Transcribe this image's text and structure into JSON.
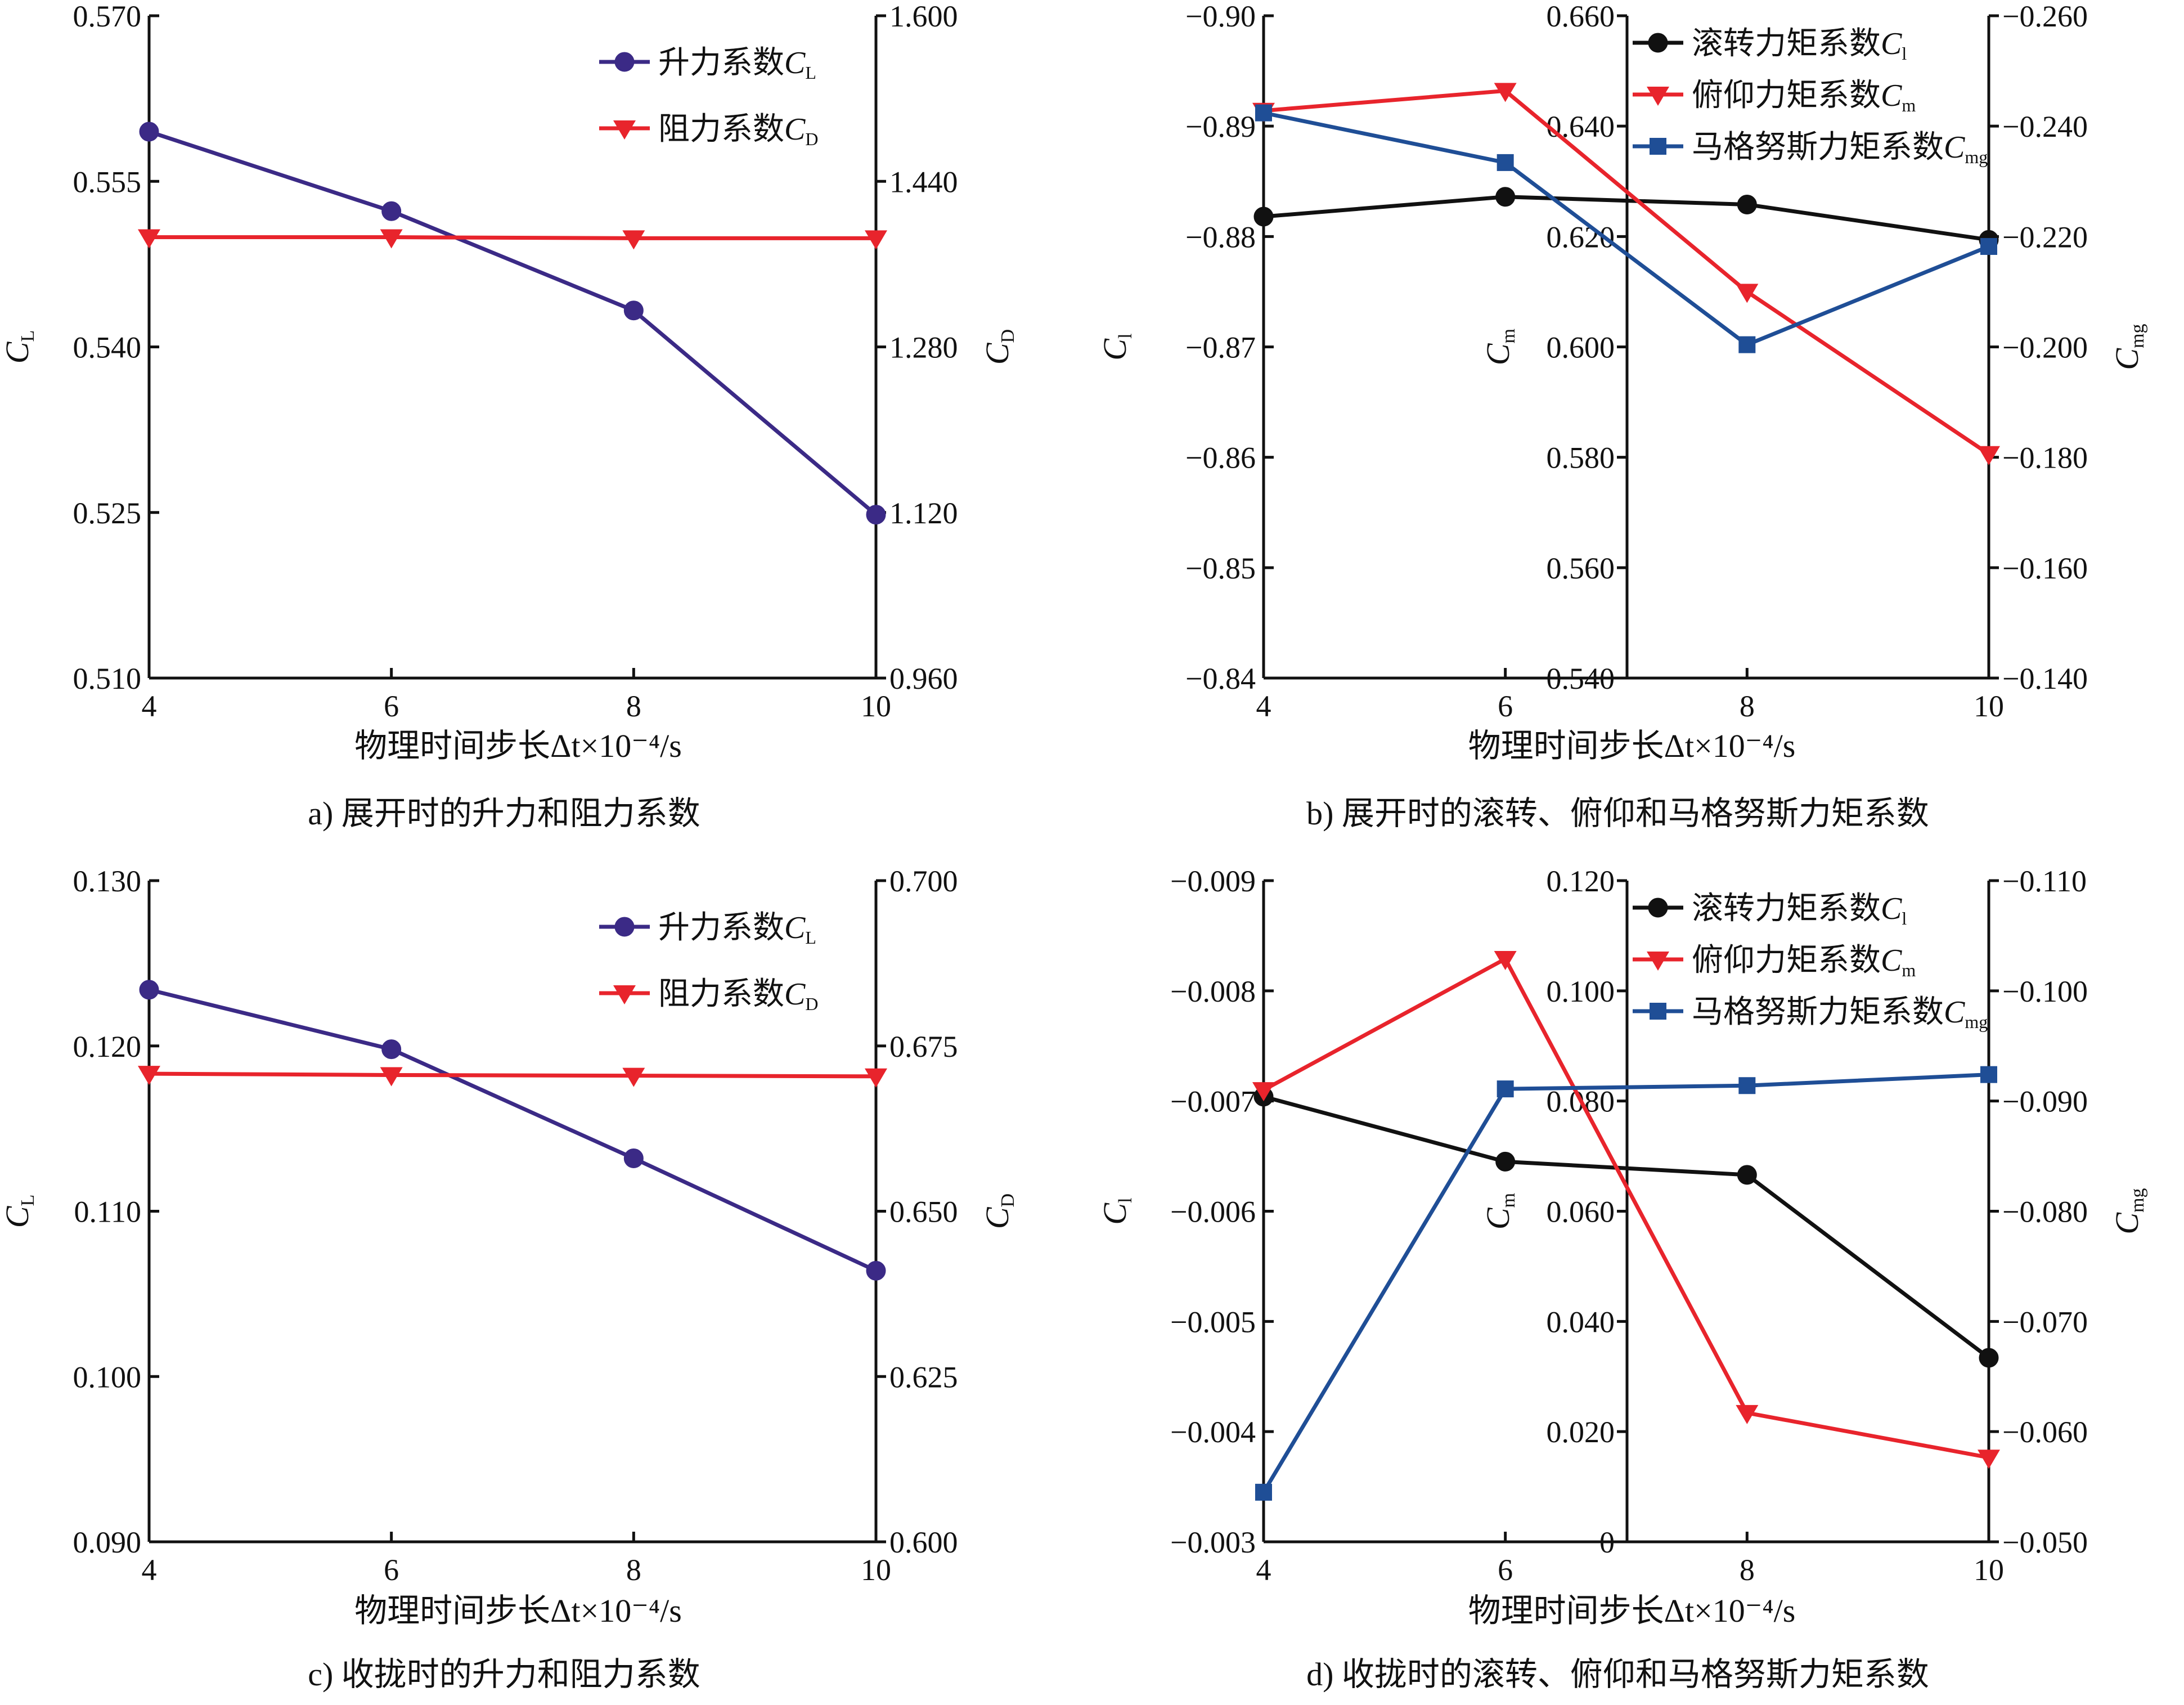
{
  "colors": {
    "purple": "#3b2a86",
    "red": "#e8242c",
    "black": "#111111",
    "blue": "#1f4e96"
  },
  "chart_data": [
    {
      "panel": "a",
      "type": "line",
      "caption": "a) 展开时的升力和阻力系数",
      "xlabel": "物理时间步长Δt×10⁻⁴/s",
      "x": [
        4,
        6,
        8,
        10
      ],
      "x_ticks": [
        "4",
        "6",
        "8",
        "10"
      ],
      "xlim": [
        4,
        10
      ],
      "axes": [
        {
          "side": "left",
          "label": "C_L",
          "label_main": "C",
          "label_sub": "L",
          "ylim": [
            0.51,
            0.57
          ],
          "ticks": [
            "0.510",
            "0.525",
            "0.540",
            "0.555",
            "0.570"
          ]
        },
        {
          "side": "right",
          "label": "C_D",
          "label_main": "C",
          "label_sub": "D",
          "ylim": [
            0.96,
            1.6
          ],
          "ticks": [
            "0.960",
            "1.120",
            "1.280",
            "1.440",
            "1.600"
          ]
        }
      ],
      "series": [
        {
          "name": "升力系数C_L",
          "legend_text": "升力系数",
          "legend_main": "C",
          "legend_sub": "L",
          "axis": 0,
          "color": "#3b2a86",
          "marker": "circle",
          "values": [
            0.5595,
            0.5523,
            0.5433,
            0.5248
          ]
        },
        {
          "name": "阻力系数C_D",
          "legend_text": "阻力系数",
          "legend_main": "C",
          "legend_sub": "D",
          "axis": 1,
          "color": "#e8242c",
          "marker": "triangle-down",
          "values": [
            1.386,
            1.386,
            1.385,
            1.385
          ]
        }
      ]
    },
    {
      "panel": "b",
      "type": "line",
      "caption": "b) 展开时的滚转、俯仰和马格努斯力矩系数",
      "xlabel": "物理时间步长Δt×10⁻⁴/s",
      "x": [
        4,
        6,
        8,
        10
      ],
      "x_ticks": [
        "4",
        "6",
        "8",
        "10"
      ],
      "xlim": [
        4,
        10
      ],
      "axes": [
        {
          "side": "left",
          "label": "C_l",
          "label_main": "C",
          "label_sub": "l",
          "ylim": [
            -0.84,
            -0.9
          ],
          "ticks": [
            "−0.84",
            "−0.85",
            "−0.86",
            "−0.87",
            "−0.88",
            "−0.89",
            "−0.90"
          ]
        },
        {
          "side": "middle",
          "label": "C_m",
          "label_main": "C",
          "label_sub": "m",
          "ylim": [
            0.54,
            0.66
          ],
          "ticks": [
            "0.540",
            "0.560",
            "0.580",
            "0.600",
            "0.620",
            "0.640",
            "0.660"
          ]
        },
        {
          "side": "right",
          "label": "C_mg",
          "label_main": "C",
          "label_sub": "mg",
          "ylim": [
            -0.14,
            -0.26
          ],
          "ticks": [
            "−0.140",
            "−0.160",
            "−0.180",
            "−0.200",
            "−0.220",
            "−0.240",
            "−0.260"
          ]
        }
      ],
      "series": [
        {
          "name": "滚转力矩系数C_l",
          "legend_text": "滚转力矩系数",
          "legend_main": "C",
          "legend_sub": "l",
          "axis": 0,
          "color": "#111111",
          "marker": "circle",
          "values": [
            -0.8818,
            -0.8836,
            -0.8829,
            -0.8797
          ]
        },
        {
          "name": "俯仰力矩系数C_m",
          "legend_text": "俯仰力矩系数",
          "legend_main": "C",
          "legend_sub": "m",
          "axis": 1,
          "color": "#e8242c",
          "marker": "triangle-down",
          "values": [
            0.6428,
            0.6464,
            0.61,
            0.5806
          ]
        },
        {
          "name": "马格努斯力矩系数C_mg",
          "legend_text": "马格努斯力矩系数",
          "legend_main": "C",
          "legend_sub": "mg",
          "axis": 2,
          "color": "#1f4e96",
          "marker": "square",
          "values": [
            -0.2424,
            -0.2334,
            -0.2004,
            -0.2182
          ]
        }
      ]
    },
    {
      "panel": "c",
      "type": "line",
      "caption": "c) 收拢时的升力和阻力系数",
      "xlabel": "物理时间步长Δt×10⁻⁴/s",
      "x": [
        4,
        6,
        8,
        10
      ],
      "x_ticks": [
        "4",
        "6",
        "8",
        "10"
      ],
      "xlim": [
        4,
        10
      ],
      "axes": [
        {
          "side": "left",
          "label": "C_L",
          "label_main": "C",
          "label_sub": "L",
          "ylim": [
            0.09,
            0.13
          ],
          "ticks": [
            "0.090",
            "0.100",
            "0.110",
            "0.120",
            "0.130"
          ]
        },
        {
          "side": "right",
          "label": "C_D",
          "label_main": "C",
          "label_sub": "D",
          "ylim": [
            0.6,
            0.7
          ],
          "ticks": [
            "0.600",
            "0.625",
            "0.650",
            "0.675",
            "0.700"
          ]
        }
      ],
      "series": [
        {
          "name": "升力系数C_L",
          "legend_text": "升力系数",
          "legend_main": "C",
          "legend_sub": "L",
          "axis": 0,
          "color": "#3b2a86",
          "marker": "circle",
          "values": [
            0.1234,
            0.1198,
            0.1132,
            0.1064
          ]
        },
        {
          "name": "阻力系数C_D",
          "legend_text": "阻力系数",
          "legend_main": "C",
          "legend_sub": "D",
          "axis": 1,
          "color": "#e8242c",
          "marker": "triangle-down",
          "values": [
            0.6708,
            0.6706,
            0.6705,
            0.6704
          ]
        }
      ]
    },
    {
      "panel": "d",
      "type": "line",
      "caption": "d) 收拢时的滚转、俯仰和马格努斯力矩系数",
      "xlabel": "物理时间步长Δt×10⁻⁴/s",
      "x": [
        4,
        6,
        8,
        10
      ],
      "x_ticks": [
        "4",
        "6",
        "8",
        "10"
      ],
      "xlim": [
        4,
        10
      ],
      "axes": [
        {
          "side": "left",
          "label": "C_l",
          "label_main": "C",
          "label_sub": "l",
          "ylim": [
            -0.003,
            -0.009
          ],
          "ticks": [
            "−0.003",
            "−0.004",
            "−0.005",
            "−0.006",
            "−0.007",
            "−0.008",
            "−0.009"
          ]
        },
        {
          "side": "middle",
          "label": "C_m",
          "label_main": "C",
          "label_sub": "m",
          "ylim": [
            0,
            0.12
          ],
          "ticks": [
            "0",
            "0.020",
            "0.040",
            "0.060",
            "0.080",
            "0.100",
            "0.120"
          ]
        },
        {
          "side": "right",
          "label": "C_mg",
          "label_main": "C",
          "label_sub": "mg",
          "ylim": [
            -0.05,
            -0.11
          ],
          "ticks": [
            "−0.050",
            "−0.060",
            "−0.070",
            "−0.080",
            "−0.090",
            "−0.100",
            "−0.110"
          ]
        }
      ],
      "series": [
        {
          "name": "滚转力矩系数C_l",
          "legend_text": "滚转力矩系数",
          "legend_main": "C",
          "legend_sub": "l",
          "axis": 0,
          "color": "#111111",
          "marker": "circle",
          "values": [
            -0.00704,
            -0.00645,
            -0.00633,
            -0.00467
          ]
        },
        {
          "name": "俯仰力矩系数C_m",
          "legend_text": "俯仰力矩系数",
          "legend_main": "C",
          "legend_sub": "m",
          "axis": 1,
          "color": "#e8242c",
          "marker": "triangle-down",
          "values": [
            0.082,
            0.1058,
            0.0234,
            0.0153
          ]
        },
        {
          "name": "马格努斯力矩系数C_mg",
          "legend_text": "马格努斯力矩系数",
          "legend_main": "C",
          "legend_sub": "mg",
          "axis": 2,
          "color": "#1f4e96",
          "marker": "square",
          "values": [
            -0.0545,
            -0.0911,
            -0.0914,
            -0.0924
          ]
        }
      ]
    }
  ]
}
